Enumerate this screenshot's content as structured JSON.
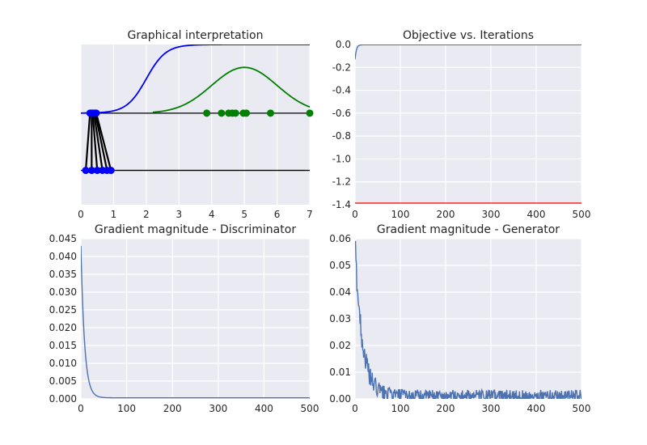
{
  "figure": {
    "colors": {
      "series": "#4c72b0",
      "sigmoid": "#0000ff",
      "gaussian": "#008000",
      "baseline": "#000000",
      "hline": "#ff0000",
      "panel_bg": "#eaeaf2",
      "grid": "#ffffff"
    }
  },
  "chart_data": [
    {
      "id": "interp",
      "type": "line",
      "title": "Graphical interpretation",
      "xlim": [
        0,
        7
      ],
      "ylim": [
        -0.3,
        1.1
      ],
      "xticks": [
        0,
        1,
        2,
        3,
        4,
        5,
        6,
        7
      ],
      "yticks": [],
      "grid": true,
      "series": [
        {
          "kind": "sigmoid",
          "center": 2.0,
          "scale": 0.3,
          "level": 0.5,
          "amplitude": 1.0,
          "x_range": [
            0,
            7
          ]
        },
        {
          "kind": "gaussian",
          "mean": 5.0,
          "sd": 1.0,
          "level": 0.5,
          "amplitude": 0.4,
          "x_range": [
            2.2,
            7
          ]
        }
      ],
      "hlines": [
        {
          "y": 0.5
        },
        {
          "y": 0.0
        }
      ],
      "real_samples": {
        "y": 0.5,
        "x": [
          3.85,
          4.3,
          4.52,
          4.63,
          4.73,
          4.97,
          5.06,
          5.8,
          7.0
        ]
      },
      "generated_samples": {
        "y_top": 0.5,
        "y_bottom": 0.0,
        "x_top": [
          0.28,
          0.33,
          0.36,
          0.4,
          0.44,
          0.47
        ],
        "x_bottom": [
          0.15,
          0.33,
          0.5,
          0.66,
          0.8,
          0.92
        ]
      }
    },
    {
      "id": "objective",
      "type": "line",
      "title": "Objective vs. Iterations",
      "xlim": [
        0,
        500
      ],
      "ylim": [
        -1.4,
        0.0
      ],
      "xticks": [
        0,
        100,
        200,
        300,
        400,
        500
      ],
      "yticks": [
        0.0,
        -0.2,
        -0.4,
        -0.6,
        -0.8,
        -1.0,
        -1.2,
        -1.4
      ],
      "ytick_labels": [
        "0.0",
        "-0.2",
        "-0.4",
        "-0.6",
        "-0.8",
        "-1.0",
        "-1.2",
        "-1.4"
      ],
      "grid": true,
      "series": [
        {
          "kind": "decay",
          "start": -0.13,
          "end": -0.002,
          "tau": 3,
          "n": 500
        }
      ],
      "hlines": [
        {
          "y": -1.386
        }
      ]
    },
    {
      "id": "grad_d",
      "type": "line",
      "title": "Gradient magnitude - Discriminator",
      "xlim": [
        0,
        500
      ],
      "ylim": [
        0,
        0.045
      ],
      "xticks": [
        0,
        100,
        200,
        300,
        400,
        500
      ],
      "yticks": [
        0.0,
        0.005,
        0.01,
        0.015,
        0.02,
        0.025,
        0.03,
        0.035,
        0.04,
        0.045
      ],
      "ytick_labels": [
        "0.000",
        "0.005",
        "0.010",
        "0.015",
        "0.020",
        "0.025",
        "0.030",
        "0.035",
        "0.040",
        "0.045"
      ],
      "grid": true,
      "series": [
        {
          "kind": "decay",
          "start": 0.043,
          "end": 0.0003,
          "tau": 8,
          "n": 500,
          "noise": 0.0
        }
      ]
    },
    {
      "id": "grad_g",
      "type": "line",
      "title": "Gradient magnitude - Generator",
      "xlim": [
        0,
        500
      ],
      "ylim": [
        0,
        0.06
      ],
      "xticks": [
        0,
        100,
        200,
        300,
        400,
        500
      ],
      "yticks": [
        0.0,
        0.01,
        0.02,
        0.03,
        0.04,
        0.05,
        0.06
      ],
      "ytick_labels": [
        "0.00",
        "0.01",
        "0.02",
        "0.03",
        "0.04",
        "0.05",
        "0.06"
      ],
      "grid": true,
      "series": [
        {
          "kind": "decay_noisy",
          "start": 0.058,
          "end": 0.0012,
          "tau": 16,
          "n": 500,
          "noise": 0.0022
        }
      ]
    }
  ]
}
